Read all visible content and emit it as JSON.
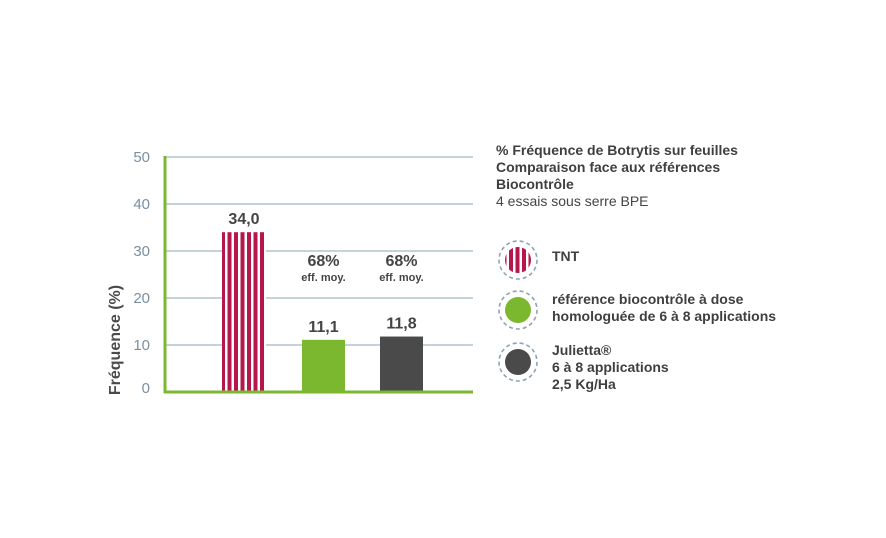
{
  "chart_data": {
    "type": "bar",
    "categories": [
      "TNT",
      "référence biocontrôle à dose homologuée de 6 à 8 applications",
      "Julietta® 6 à 8 applications 2,5 Kg/Ha"
    ],
    "values": [
      34.0,
      11.1,
      11.8
    ],
    "value_labels": [
      "34,0",
      "11,1",
      "11,8"
    ],
    "efficacy_labels": [
      null,
      {
        "percent": "68%",
        "sub": "eff. moy."
      },
      {
        "percent": "68%",
        "sub": "eff. moy."
      }
    ],
    "ylabel": "Fréquence (%)",
    "xlabel": "",
    "ylim": [
      0,
      50
    ],
    "yticks": [
      "0",
      "10",
      "20",
      "30",
      "40",
      "50"
    ],
    "grid": true,
    "colors": {
      "tnt": "#b5164b",
      "reference": "#7cb82f",
      "julietta": "#4a4a4a",
      "axis": "#7cb82f",
      "grid": "#8ea4b4",
      "tick": "#7a8fa0"
    },
    "bar_patterns": [
      "vertical-stripes",
      "solid",
      "solid"
    ]
  },
  "legend": {
    "title_lines": [
      "% Fréquence de Botrytis sur feuilles",
      "Comparaison face aux références",
      "Biocontrôle"
    ],
    "subtitle": "4 essais sous serre BPE",
    "items": [
      {
        "lines": [
          "TNT"
        ],
        "swatch": "tnt-striped-circle-icon",
        "color": "#b5164b"
      },
      {
        "lines": [
          "référence biocontrôle à dose",
          "homologuée de 6 à 8 applications"
        ],
        "swatch": "green-circle-icon",
        "color": "#7cb82f"
      },
      {
        "lines": [
          "Julietta®",
          "6  à 8 applications",
          "2,5 Kg/Ha"
        ],
        "swatch": "dark-circle-icon",
        "color": "#4a4a4a"
      }
    ]
  }
}
